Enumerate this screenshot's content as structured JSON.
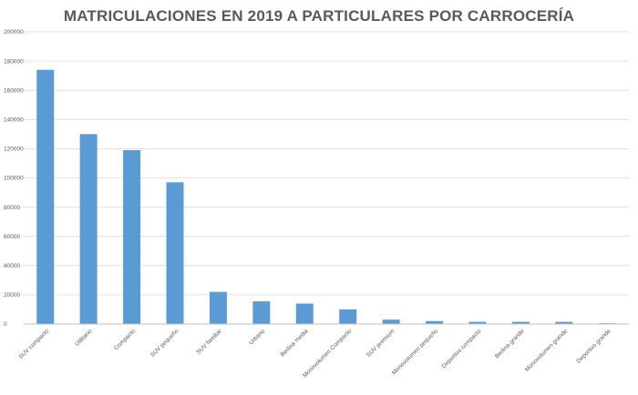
{
  "chart_data": {
    "type": "bar",
    "title": "MATRICULACIONES EN 2019 A PARTICULARES POR CARROCERÍA",
    "xlabel": "",
    "ylabel": "",
    "ylim": [
      0,
      200000
    ],
    "ytick_values": [
      0,
      20000,
      40000,
      60000,
      80000,
      100000,
      120000,
      140000,
      160000,
      180000,
      200000
    ],
    "ytick_labels": [
      "0",
      "20000",
      "40000",
      "60000",
      "80000",
      "100000",
      "120000",
      "140000",
      "160000",
      "180000",
      "200000"
    ],
    "categories": [
      "SUV compacto",
      "Utilitario",
      "Compacto",
      "SUV pequeño",
      "SUV familiar",
      "Urbano",
      "Berlina media",
      "Monovolumen Compacto",
      "SUV premium",
      "Monovolumen pequeño",
      "Deportivo compacto",
      "Berlina grande",
      "Monovolumen grande",
      "Deportivo grande"
    ],
    "values": [
      174000,
      130000,
      119000,
      97000,
      22000,
      15500,
      14000,
      10000,
      3000,
      2000,
      1500,
      1500,
      1500,
      500
    ],
    "bar_color": "#5b9bd5",
    "grid": true,
    "legend": "none"
  }
}
